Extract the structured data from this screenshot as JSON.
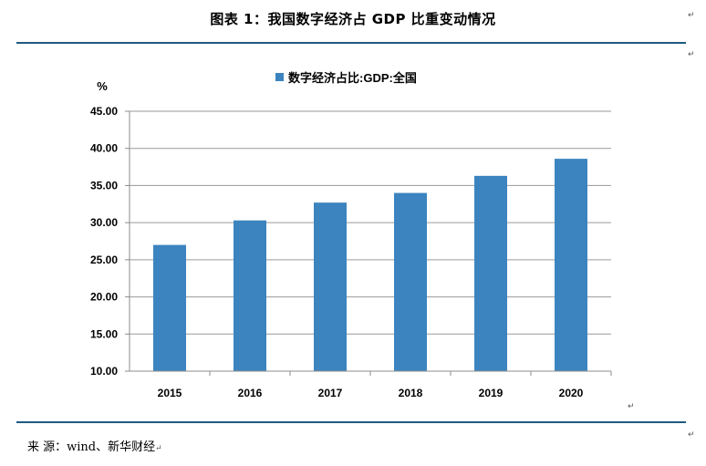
{
  "figure_title": "图表 1：我国数字经济占 GDP 比重变动情况",
  "source_text": "来 源：wind、新华财经",
  "para_mark": "↵",
  "colors": {
    "bar": "#3c84bf",
    "rule": "#1e5a80",
    "axis": "#8c8c8c"
  },
  "chart_data": {
    "type": "bar",
    "title": "",
    "ylabel": "%",
    "xlabel": "",
    "legend_position": "top-center",
    "grid": true,
    "ylim": [
      10,
      45
    ],
    "yticks": [
      "10.00",
      "15.00",
      "20.00",
      "25.00",
      "30.00",
      "35.00",
      "40.00",
      "45.00"
    ],
    "categories": [
      "2015",
      "2016",
      "2017",
      "2018",
      "2019",
      "2020"
    ],
    "series": [
      {
        "name": "数字经济占比:GDP:全国",
        "values": [
          27.0,
          30.3,
          32.7,
          34.0,
          36.3,
          38.6
        ]
      }
    ]
  }
}
